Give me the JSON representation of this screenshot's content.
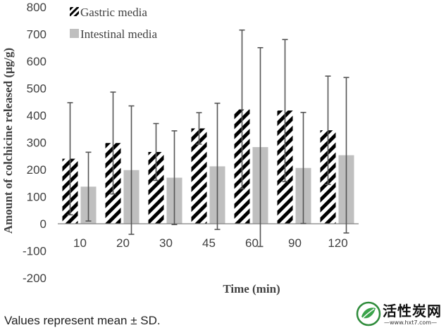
{
  "chart_data": {
    "type": "bar",
    "xlabel": "Time (min)",
    "ylabel": "Amount of colchicine released (μg/g)",
    "ylim": [
      -200,
      800
    ],
    "yticks": [
      -200,
      -100,
      0,
      100,
      200,
      300,
      400,
      500,
      600,
      700,
      800
    ],
    "categories": [
      "10",
      "20",
      "30",
      "45",
      "60",
      "90",
      "120"
    ],
    "legend_position": "top-left",
    "grid": false,
    "series": [
      {
        "name": "Gastric media",
        "pattern": "diagonal-stripes",
        "color": "#000000",
        "values": [
          240,
          298,
          265,
          352,
          422,
          418,
          345
        ],
        "errors": [
          207,
          188,
          105,
          58,
          293,
          262,
          200
        ]
      },
      {
        "name": "Intestinal media",
        "pattern": "solid",
        "color": "#bfbfbf",
        "values": [
          137,
          198,
          170,
          212,
          283,
          206,
          253
        ],
        "errors": [
          127,
          237,
          173,
          233,
          367,
          205,
          287
        ]
      }
    ]
  },
  "footnote": "Values represent mean ± SD.",
  "watermark": {
    "title": "活性炭网",
    "url": "—www.hxt7.com—"
  }
}
